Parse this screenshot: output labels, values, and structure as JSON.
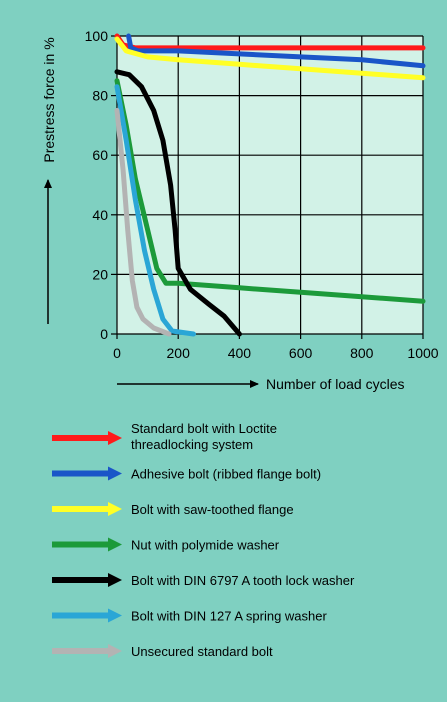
{
  "chart_data": {
    "type": "line",
    "ylabel": "Prestress force in %",
    "xlabel": "Number of load cycles",
    "xlim": [
      0,
      1000
    ],
    "ylim": [
      0,
      100
    ],
    "xticks": [
      0,
      200,
      400,
      600,
      800,
      1000
    ],
    "yticks": [
      0,
      20,
      40,
      60,
      80,
      100
    ],
    "grid": true,
    "legend_position": "below",
    "plot_background": "#d2f2e7",
    "series": [
      {
        "name": "Standard bolt with Loctite threadlocking system",
        "color": "#ff1a1a",
        "points": [
          [
            0,
            100
          ],
          [
            20,
            97
          ],
          [
            60,
            96
          ],
          [
            200,
            96
          ],
          [
            400,
            96
          ],
          [
            600,
            96
          ],
          [
            800,
            96
          ],
          [
            1000,
            96
          ]
        ]
      },
      {
        "name": "Adhesive bolt (ribbed flange bolt)",
        "color": "#1a55c8",
        "points": [
          [
            38,
            100
          ],
          [
            45,
            96
          ],
          [
            70,
            95
          ],
          [
            200,
            95
          ],
          [
            400,
            94
          ],
          [
            600,
            93
          ],
          [
            800,
            92
          ],
          [
            1000,
            90
          ]
        ]
      },
      {
        "name": "Bolt with saw-toothed flange",
        "color": "#ffff26",
        "points": [
          [
            0,
            99
          ],
          [
            30,
            95
          ],
          [
            100,
            93
          ],
          [
            200,
            92
          ],
          [
            400,
            90.5
          ],
          [
            600,
            89
          ],
          [
            800,
            87.5
          ],
          [
            1000,
            86
          ]
        ]
      },
      {
        "name": "Nut with polymide washer",
        "color": "#1c9a3a",
        "points": [
          [
            0,
            85
          ],
          [
            30,
            70
          ],
          [
            60,
            52
          ],
          [
            100,
            35
          ],
          [
            130,
            22
          ],
          [
            160,
            17
          ],
          [
            200,
            17
          ],
          [
            400,
            15.5
          ],
          [
            600,
            14
          ],
          [
            800,
            12.5
          ],
          [
            1000,
            11
          ]
        ]
      },
      {
        "name": "Bolt with DIN 6797 A tooth lock washer",
        "color": "#000000",
        "points": [
          [
            0,
            88
          ],
          [
            40,
            87
          ],
          [
            80,
            83
          ],
          [
            120,
            75
          ],
          [
            150,
            65
          ],
          [
            175,
            50
          ],
          [
            190,
            35
          ],
          [
            200,
            22
          ],
          [
            240,
            15
          ],
          [
            300,
            10
          ],
          [
            350,
            6
          ],
          [
            400,
            0
          ]
        ]
      },
      {
        "name": "Bolt with DIN 127 A spring washer",
        "color": "#2aa6d6",
        "points": [
          [
            0,
            83
          ],
          [
            30,
            65
          ],
          [
            60,
            45
          ],
          [
            90,
            28
          ],
          [
            120,
            15
          ],
          [
            150,
            5
          ],
          [
            180,
            1
          ],
          [
            250,
            0
          ]
        ]
      },
      {
        "name": "Unsecured standard bolt",
        "color": "#b3b3b3",
        "points": [
          [
            0,
            75
          ],
          [
            20,
            55
          ],
          [
            35,
            35
          ],
          [
            50,
            18
          ],
          [
            65,
            9
          ],
          [
            85,
            5
          ],
          [
            120,
            2
          ],
          [
            170,
            0
          ]
        ]
      }
    ]
  }
}
